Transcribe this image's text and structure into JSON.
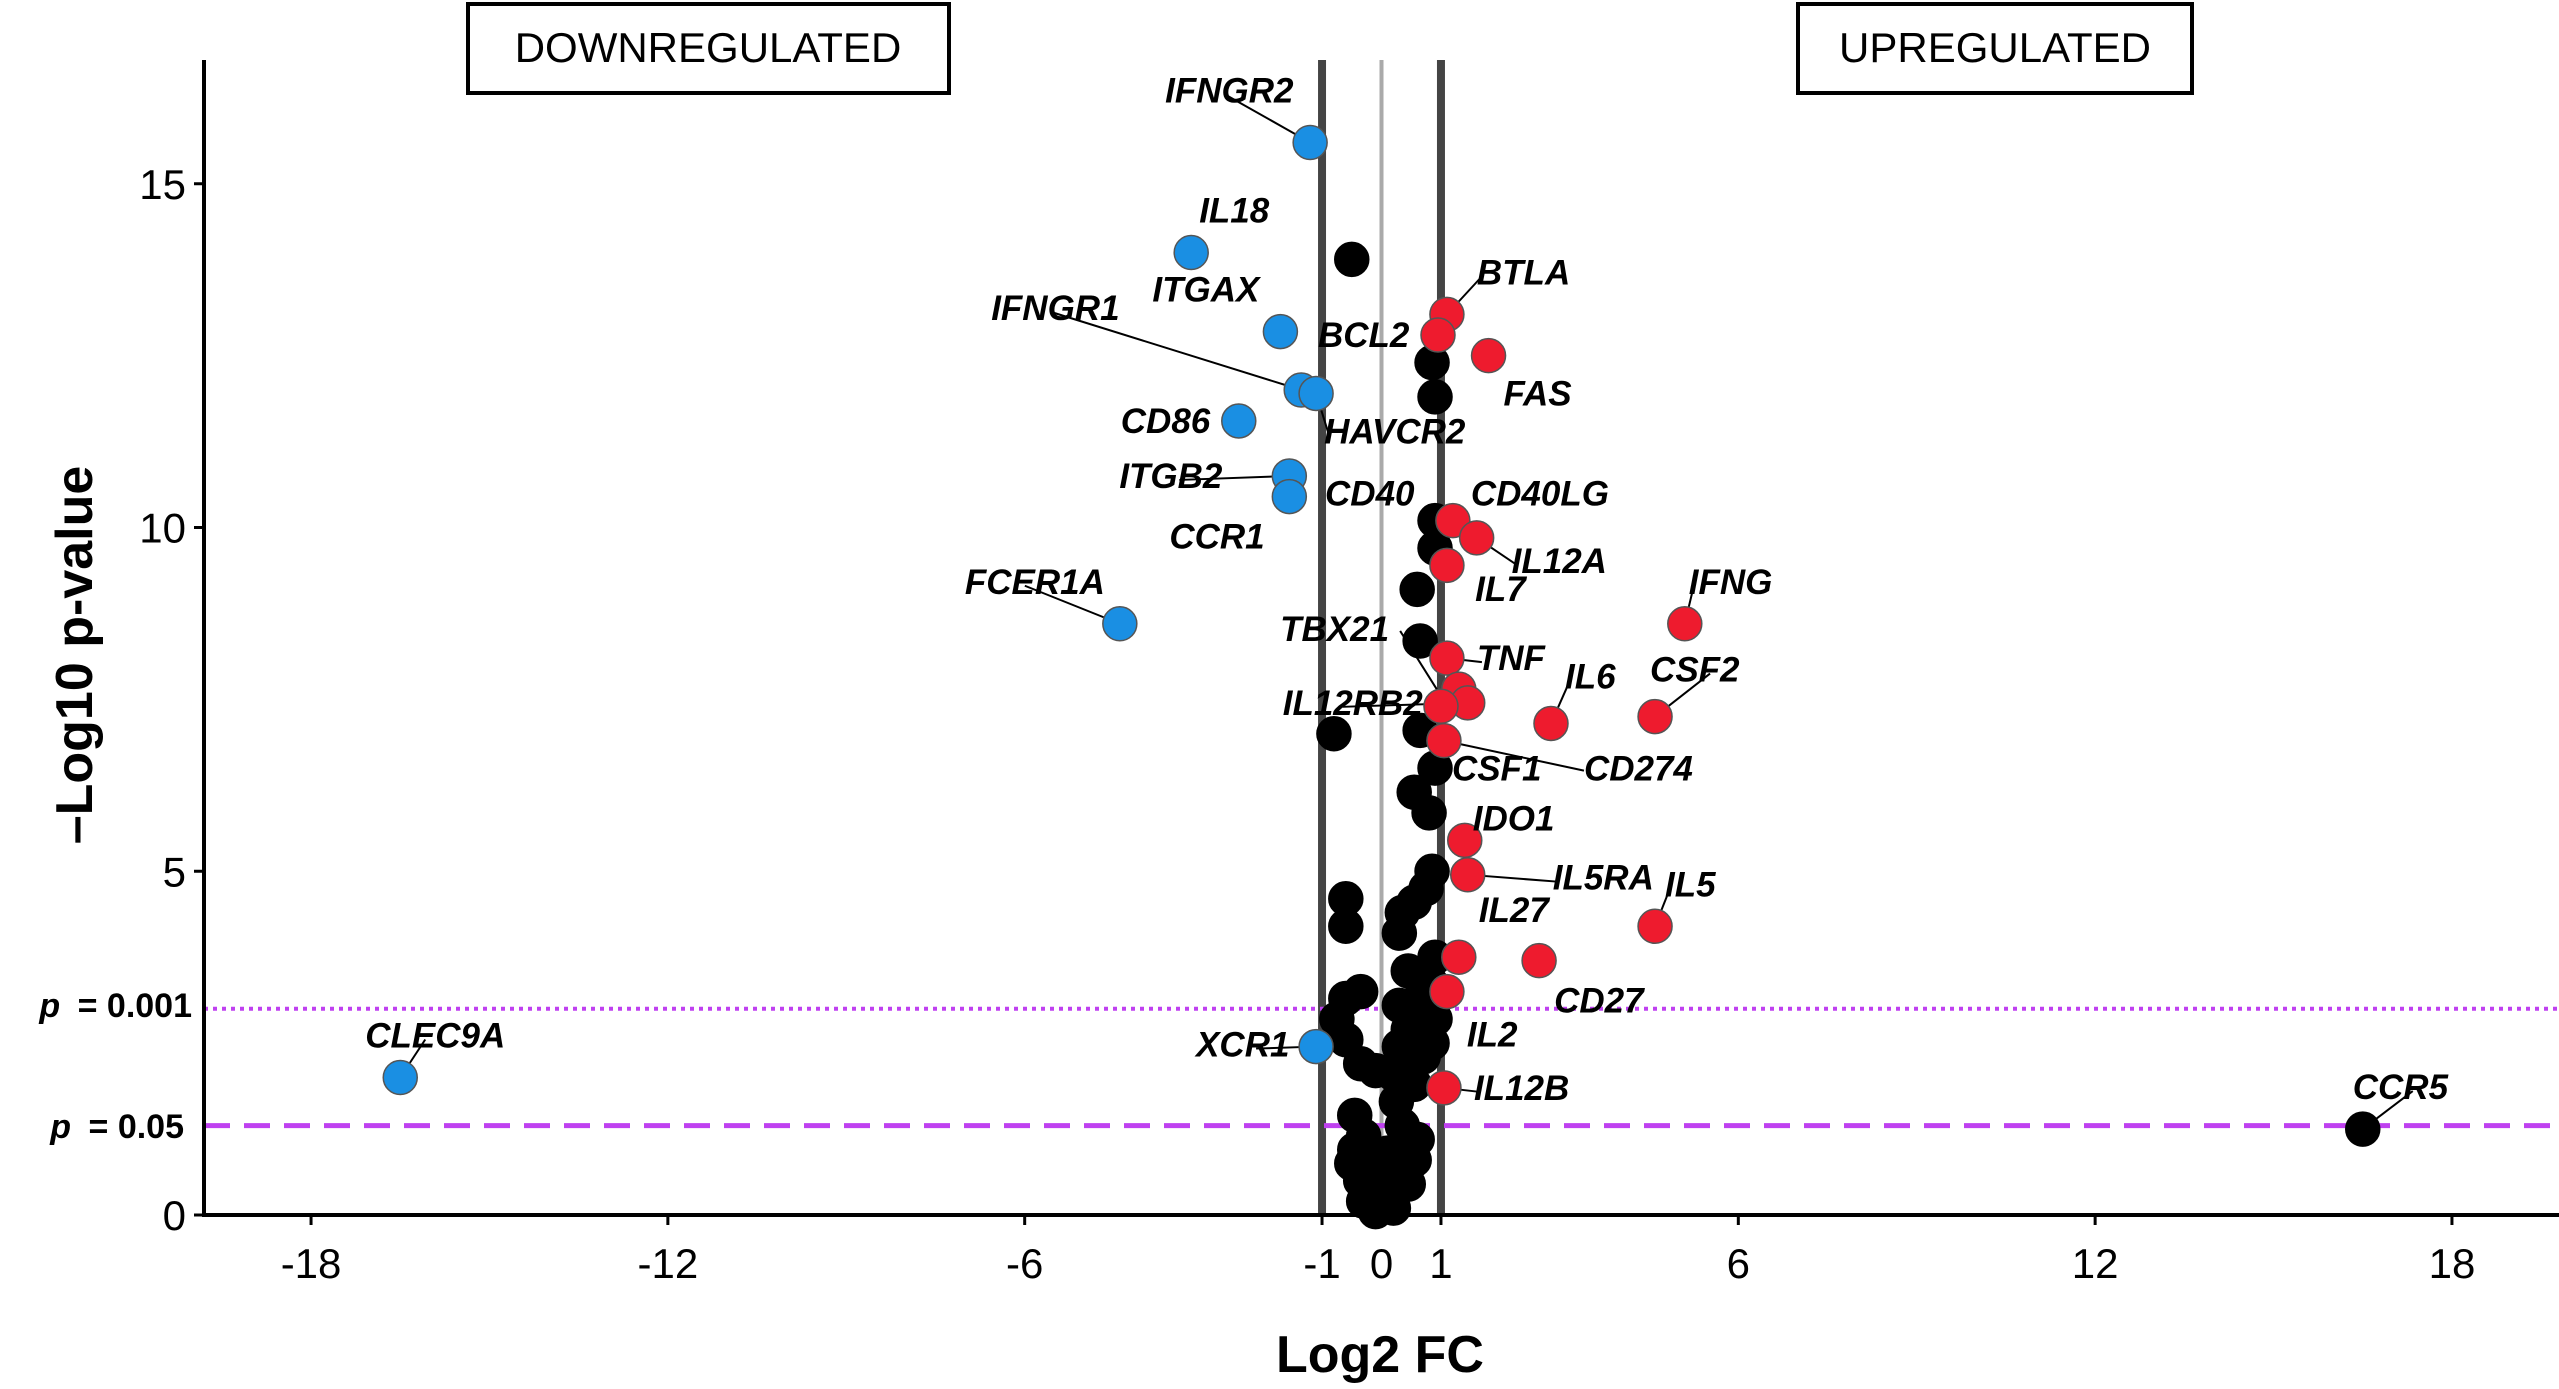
{
  "chart_data": {
    "type": "scatter",
    "xlabel": "Log2 FC",
    "ylabel": "–Log10 p-value",
    "xlim": [
      -19.8,
      19.8
    ],
    "ylim": [
      0,
      16.8
    ],
    "x_ticks": [
      "-18",
      "-12",
      "-6",
      "-1",
      "0",
      "1",
      "6",
      "12",
      "18"
    ],
    "x_tick_values": [
      -18,
      -12,
      -6,
      -1,
      0,
      1,
      6,
      12,
      18
    ],
    "y_ticks": [
      "0",
      "5",
      "10",
      "15"
    ],
    "y_tick_values": [
      0,
      5,
      10,
      15
    ],
    "vertical_lines": [
      -1,
      0,
      1
    ],
    "threshold_lines": [
      {
        "label_prefix": "p",
        "label_value": "= 0.001",
        "y": 3.0,
        "style": "dotted"
      },
      {
        "label_prefix": "p",
        "label_value": "= 0.05",
        "y": 1.3,
        "style": "dashed"
      }
    ],
    "region_labels": {
      "left": "DOWNREGULATED",
      "right": "UPREGULATED"
    },
    "colors": {
      "down": "#1a8fe3",
      "up": "#ee1b2e",
      "ns": "#000000",
      "threshold": "#bf40f0",
      "vline_dark": "#444444",
      "vline_light": "#aaaaaa"
    },
    "series": [
      {
        "name": "down",
        "points": [
          {
            "gene": "IFNGR2",
            "x": -1.2,
            "y": 15.6
          },
          {
            "gene": "IL18",
            "x": -3.2,
            "y": 14.0
          },
          {
            "gene": "ITGAX",
            "x": -1.7,
            "y": 12.85
          },
          {
            "gene": "IFNGR1",
            "x": -1.35,
            "y": 12.0
          },
          {
            "gene": "HAVCR2",
            "x": -1.1,
            "y": 11.95
          },
          {
            "gene": "CD86",
            "x": -2.4,
            "y": 11.55
          },
          {
            "gene": "ITGB2",
            "x": -1.55,
            "y": 10.75
          },
          {
            "gene": "CCR1",
            "x": -1.55,
            "y": 10.45
          },
          {
            "gene": "FCER1A",
            "x": -4.4,
            "y": 8.6
          },
          {
            "gene": "XCR1",
            "x": -1.1,
            "y": 2.45
          },
          {
            "gene": "CLEC9A",
            "x": -16.5,
            "y": 2.0
          }
        ]
      },
      {
        "name": "up",
        "points": [
          {
            "gene": "BTLA",
            "x": 1.1,
            "y": 13.1
          },
          {
            "gene": "BCL2",
            "x": 0.95,
            "y": 12.8
          },
          {
            "gene": "FAS",
            "x": 1.8,
            "y": 12.5
          },
          {
            "gene": "CD40LG",
            "x": 1.2,
            "y": 10.1
          },
          {
            "gene": "IL12A",
            "x": 1.6,
            "y": 9.85
          },
          {
            "gene": "",
            "x": 1.1,
            "y": 9.45
          },
          {
            "gene": "IFNG",
            "x": 5.1,
            "y": 8.6
          },
          {
            "gene": "TNF",
            "x": 1.1,
            "y": 8.1
          },
          {
            "gene": "",
            "x": 1.3,
            "y": 7.65
          },
          {
            "gene": "IL12RB2",
            "x": 1.45,
            "y": 7.45
          },
          {
            "gene": "",
            "x": 1.0,
            "y": 7.4
          },
          {
            "gene": "IL6",
            "x": 2.85,
            "y": 7.15
          },
          {
            "gene": "CSF2",
            "x": 4.6,
            "y": 7.25
          },
          {
            "gene": "CSF1",
            "x": 1.05,
            "y": 6.9
          },
          {
            "gene": "IDO1",
            "x": 1.4,
            "y": 5.45
          },
          {
            "gene": "IL5RA",
            "x": 1.45,
            "y": 4.95
          },
          {
            "gene": "IL5",
            "x": 4.6,
            "y": 4.2
          },
          {
            "gene": "IL27",
            "x": 1.3,
            "y": 3.75
          },
          {
            "gene": "CD27",
            "x": 2.65,
            "y": 3.7
          },
          {
            "gene": "IL2",
            "x": 1.1,
            "y": 3.25
          },
          {
            "gene": "IL12B",
            "x": 1.05,
            "y": 1.85
          }
        ]
      },
      {
        "name": "ns",
        "points": [
          {
            "gene": "",
            "x": -0.5,
            "y": 13.9
          },
          {
            "gene": "",
            "x": 0.85,
            "y": 12.4
          },
          {
            "gene": "",
            "x": 0.9,
            "y": 11.9
          },
          {
            "gene": "",
            "x": 0.9,
            "y": 10.1
          },
          {
            "gene": "",
            "x": 0.9,
            "y": 9.7
          },
          {
            "gene": "",
            "x": 0.6,
            "y": 9.1
          },
          {
            "gene": "",
            "x": 0.65,
            "y": 8.35
          },
          {
            "gene": "",
            "x": 0.65,
            "y": 7.05
          },
          {
            "gene": "",
            "x": -0.8,
            "y": 7.0
          },
          {
            "gene": "",
            "x": 0.9,
            "y": 6.5
          },
          {
            "gene": "",
            "x": 0.55,
            "y": 6.15
          },
          {
            "gene": "",
            "x": 0.8,
            "y": 5.85
          },
          {
            "gene": "",
            "x": 0.85,
            "y": 5.0
          },
          {
            "gene": "",
            "x": 0.75,
            "y": 4.75
          },
          {
            "gene": "",
            "x": 0.55,
            "y": 4.55
          },
          {
            "gene": "",
            "x": 0.35,
            "y": 4.4
          },
          {
            "gene": "",
            "x": -0.6,
            "y": 4.6
          },
          {
            "gene": "",
            "x": -0.6,
            "y": 4.2
          },
          {
            "gene": "",
            "x": 0.3,
            "y": 4.1
          },
          {
            "gene": "",
            "x": 0.9,
            "y": 3.75
          },
          {
            "gene": "",
            "x": 0.45,
            "y": 3.55
          },
          {
            "gene": "",
            "x": 0.85,
            "y": 3.35
          },
          {
            "gene": "",
            "x": 0.6,
            "y": 3.1
          },
          {
            "gene": "",
            "x": -0.35,
            "y": 3.25
          },
          {
            "gene": "",
            "x": -0.6,
            "y": 3.15
          },
          {
            "gene": "",
            "x": 0.3,
            "y": 3.05
          },
          {
            "gene": "",
            "x": -0.75,
            "y": 2.85
          },
          {
            "gene": "",
            "x": 0.9,
            "y": 2.85
          },
          {
            "gene": "",
            "x": 0.45,
            "y": 2.7
          },
          {
            "gene": "",
            "x": -0.6,
            "y": 2.55
          },
          {
            "gene": "",
            "x": 0.85,
            "y": 2.5
          },
          {
            "gene": "",
            "x": 0.3,
            "y": 2.45
          },
          {
            "gene": "",
            "x": 0.7,
            "y": 2.3
          },
          {
            "gene": "",
            "x": -0.35,
            "y": 2.2
          },
          {
            "gene": "",
            "x": -0.1,
            "y": 2.1
          },
          {
            "gene": "",
            "x": 0.2,
            "y": 2.05
          },
          {
            "gene": "",
            "x": 0.55,
            "y": 1.9
          },
          {
            "gene": "",
            "x": 0.25,
            "y": 1.65
          },
          {
            "gene": "",
            "x": -0.45,
            "y": 1.45
          },
          {
            "gene": "",
            "x": 0.35,
            "y": 1.3
          },
          {
            "gene": "",
            "x": -0.3,
            "y": 1.15
          },
          {
            "gene": "",
            "x": 0.6,
            "y": 1.1
          },
          {
            "gene": "",
            "x": -0.45,
            "y": 0.95
          },
          {
            "gene": "",
            "x": 0.1,
            "y": 0.9
          },
          {
            "gene": "",
            "x": 0.55,
            "y": 0.8
          },
          {
            "gene": "",
            "x": -0.5,
            "y": 0.75
          },
          {
            "gene": "",
            "x": -0.2,
            "y": 0.65
          },
          {
            "gene": "",
            "x": 0.25,
            "y": 0.6
          },
          {
            "gene": "",
            "x": -0.35,
            "y": 0.5
          },
          {
            "gene": "",
            "x": 0.45,
            "y": 0.45
          },
          {
            "gene": "",
            "x": -0.15,
            "y": 0.35
          },
          {
            "gene": "",
            "x": 0.15,
            "y": 0.3
          },
          {
            "gene": "",
            "x": -0.3,
            "y": 0.2
          },
          {
            "gene": "",
            "x": 0.0,
            "y": 0.15
          },
          {
            "gene": "",
            "x": 0.2,
            "y": 0.1
          },
          {
            "gene": "",
            "x": -0.1,
            "y": 0.05
          },
          {
            "gene": "CCR5",
            "x": 16.5,
            "y": 1.25
          }
        ]
      }
    ]
  }
}
